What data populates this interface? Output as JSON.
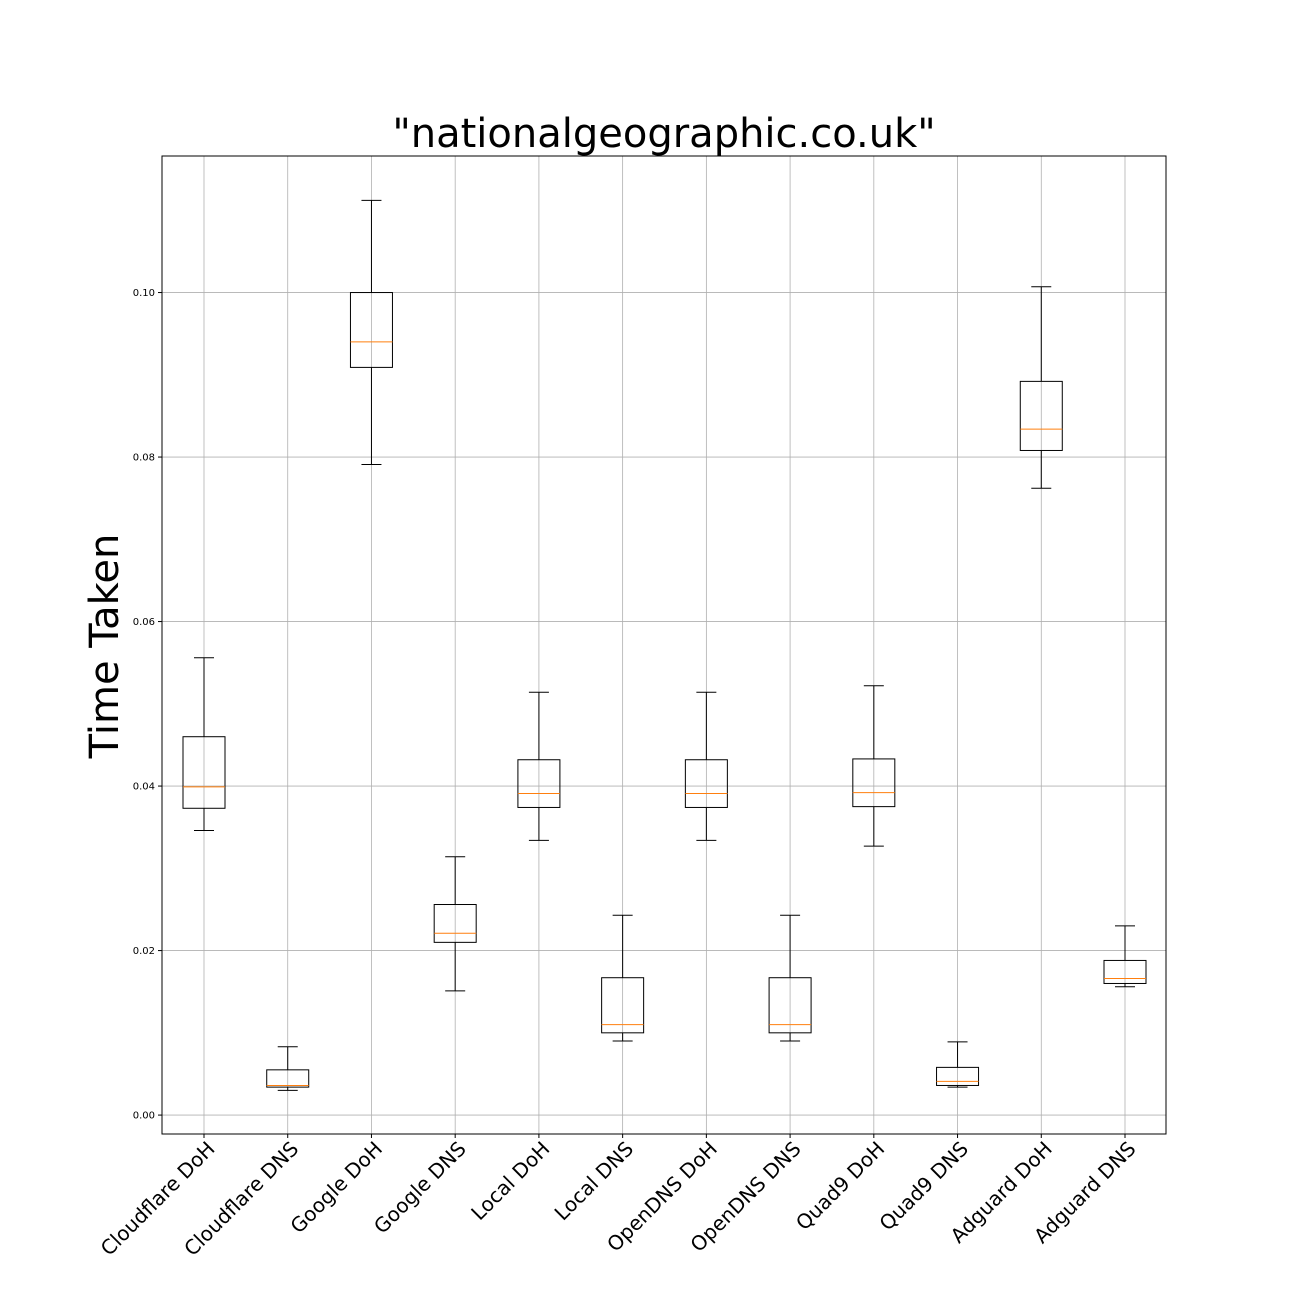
{
  "chart_data": {
    "type": "boxplot",
    "title": "\"nationalgeographic.co.uk\"",
    "xlabel": "",
    "ylabel": "Time Taken",
    "ylim": [
      -0.0023,
      0.1166
    ],
    "yticks": [
      0.0,
      0.02,
      0.04,
      0.06,
      0.08,
      0.1
    ],
    "ytick_labels": [
      "0.00",
      "0.02",
      "0.04",
      "0.06",
      "0.08",
      "0.10"
    ],
    "grid": true,
    "colors": {
      "box": "#000000",
      "median": "#ff7f0e",
      "grid": "#b0b0b0"
    },
    "categories": [
      "Cloudflare DoH",
      "Cloudflare DNS",
      "Google DoH",
      "Google DNS",
      "Local DoH",
      "Local DNS",
      "OpenDNS DoH",
      "OpenDNS DNS",
      "Quad9 DoH",
      "Quad9 DNS",
      "Adguard DoH",
      "Adguard DNS"
    ],
    "boxes": [
      {
        "whislo": 0.0346,
        "q1": 0.0373,
        "med": 0.0399,
        "q3": 0.046,
        "whishi": 0.0556
      },
      {
        "whislo": 0.003,
        "q1": 0.0034,
        "med": 0.0036,
        "q3": 0.0055,
        "whishi": 0.0083
      },
      {
        "whislo": 0.0791,
        "q1": 0.0909,
        "med": 0.094,
        "q3": 0.1,
        "whishi": 0.1112
      },
      {
        "whislo": 0.0151,
        "q1": 0.021,
        "med": 0.0221,
        "q3": 0.0256,
        "whishi": 0.0314
      },
      {
        "whislo": 0.0334,
        "q1": 0.0374,
        "med": 0.0391,
        "q3": 0.0432,
        "whishi": 0.0514
      },
      {
        "whislo": 0.009,
        "q1": 0.01,
        "med": 0.011,
        "q3": 0.0167,
        "whishi": 0.0243
      },
      {
        "whislo": 0.0334,
        "q1": 0.0374,
        "med": 0.0391,
        "q3": 0.0432,
        "whishi": 0.0514
      },
      {
        "whislo": 0.009,
        "q1": 0.01,
        "med": 0.011,
        "q3": 0.0167,
        "whishi": 0.0243
      },
      {
        "whislo": 0.0327,
        "q1": 0.0375,
        "med": 0.0392,
        "q3": 0.0433,
        "whishi": 0.0522
      },
      {
        "whislo": 0.0034,
        "q1": 0.0036,
        "med": 0.0041,
        "q3": 0.0058,
        "whishi": 0.0089
      },
      {
        "whislo": 0.0762,
        "q1": 0.0808,
        "med": 0.0834,
        "q3": 0.0892,
        "whishi": 0.1007
      },
      {
        "whislo": 0.0156,
        "q1": 0.016,
        "med": 0.0166,
        "q3": 0.0188,
        "whishi": 0.023
      }
    ]
  }
}
